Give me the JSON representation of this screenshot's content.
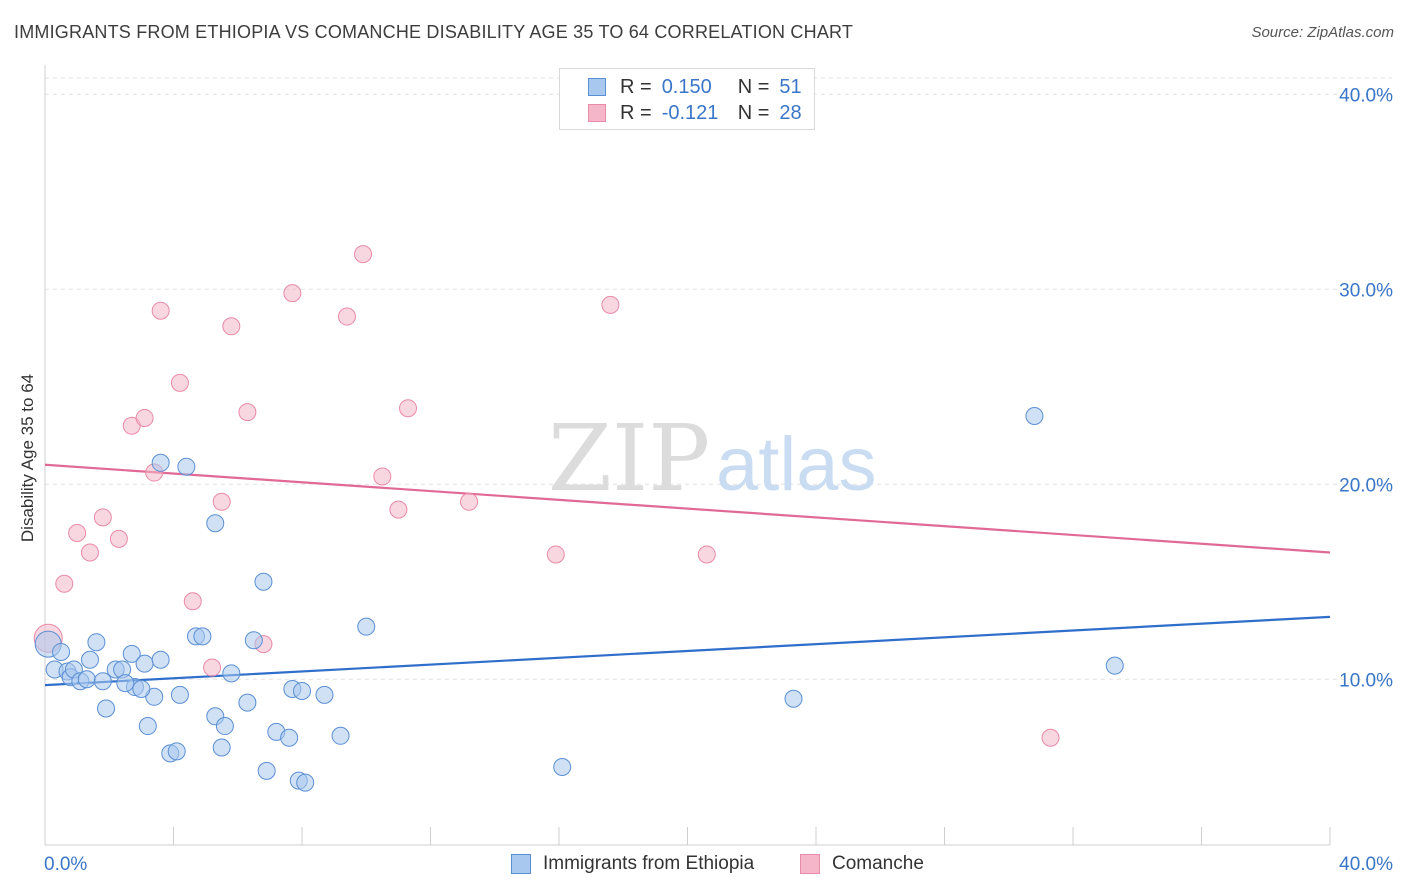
{
  "header": {
    "title": "IMMIGRANTS FROM ETHIOPIA VS COMANCHE DISABILITY AGE 35 TO 64 CORRELATION CHART",
    "source": "Source: ZipAtlas.com"
  },
  "legend": {
    "rows": [
      {
        "r_label": "R =",
        "r_value": "0.150",
        "n_label": "N =",
        "n_value": "51"
      },
      {
        "r_label": "R =",
        "r_value": "-0.121",
        "n_label": "N =",
        "n_value": "28"
      }
    ]
  },
  "watermark": {
    "zip": "ZIP",
    "atlas": "atlas"
  },
  "colors": {
    "blue_fill": "#a9c8ef",
    "blue_stroke": "#5b8fd4",
    "blue_line": "#2f6fcb",
    "pink_fill": "#f4b6c8",
    "pink_stroke": "#e98aa8",
    "pink_line": "#e06a95",
    "axis_text": "#3a76c8",
    "grid": "#e2e2e2"
  },
  "chart_data": {
    "type": "scatter",
    "title": "IMMIGRANTS FROM ETHIOPIA VS COMANCHE DISABILITY AGE 35 TO 64 CORRELATION CHART",
    "xlabel": "",
    "ylabel": "Disability Age 35 to 64",
    "xlim": [
      0,
      40
    ],
    "ylim": [
      1.5,
      41.5
    ],
    "x_ticks_labels": [
      "0.0%",
      "40.0%"
    ],
    "y_ticks": [
      10,
      20,
      30,
      40
    ],
    "y_ticks_labels": [
      "10.0%",
      "20.0%",
      "30.0%",
      "40.0%"
    ],
    "grid": true,
    "legend_placement": "bottom",
    "series": [
      {
        "name": "Immigrants from Ethiopia",
        "color": "#a9c8ef",
        "trend": [
          [
            0,
            9.7
          ],
          [
            40,
            13.2
          ]
        ],
        "points": [
          [
            0.1,
            11.8
          ],
          [
            0.3,
            10.5
          ],
          [
            0.5,
            11.4
          ],
          [
            0.7,
            10.4
          ],
          [
            0.8,
            10.1
          ],
          [
            0.9,
            10.5
          ],
          [
            1.1,
            9.9
          ],
          [
            1.3,
            10.0
          ],
          [
            1.4,
            11.0
          ],
          [
            1.6,
            11.9
          ],
          [
            1.8,
            9.9
          ],
          [
            1.9,
            8.5
          ],
          [
            2.2,
            10.5
          ],
          [
            2.4,
            10.5
          ],
          [
            2.7,
            11.3
          ],
          [
            2.8,
            9.6
          ],
          [
            3.1,
            10.8
          ],
          [
            3.2,
            7.6
          ],
          [
            3.4,
            9.1
          ],
          [
            3.6,
            11.0
          ],
          [
            3.6,
            21.1
          ],
          [
            3.9,
            6.2
          ],
          [
            4.2,
            9.2
          ],
          [
            4.1,
            6.3
          ],
          [
            4.4,
            20.9
          ],
          [
            4.7,
            12.2
          ],
          [
            4.9,
            12.2
          ],
          [
            5.3,
            18.0
          ],
          [
            5.3,
            8.1
          ],
          [
            5.6,
            7.6
          ],
          [
            5.5,
            6.5
          ],
          [
            5.8,
            10.3
          ],
          [
            6.3,
            8.8
          ],
          [
            6.5,
            12.0
          ],
          [
            6.8,
            15.0
          ],
          [
            6.9,
            5.3
          ],
          [
            7.2,
            7.3
          ],
          [
            7.6,
            7.0
          ],
          [
            7.7,
            9.5
          ],
          [
            7.9,
            4.8
          ],
          [
            8.0,
            9.4
          ],
          [
            8.1,
            4.7
          ],
          [
            8.7,
            9.2
          ],
          [
            9.2,
            7.1
          ],
          [
            10.0,
            12.7
          ],
          [
            16.1,
            5.5
          ],
          [
            23.3,
            9.0
          ],
          [
            30.8,
            23.5
          ],
          [
            33.3,
            10.7
          ],
          [
            2.5,
            9.8
          ],
          [
            3.0,
            9.5
          ]
        ]
      },
      {
        "name": "Comanche",
        "color": "#f4b6c8",
        "trend": [
          [
            0,
            21.0
          ],
          [
            40,
            16.5
          ]
        ],
        "points": [
          [
            0.1,
            12.1
          ],
          [
            0.6,
            14.9
          ],
          [
            1.0,
            17.5
          ],
          [
            1.4,
            16.5
          ],
          [
            1.8,
            18.3
          ],
          [
            2.3,
            17.2
          ],
          [
            2.7,
            23.0
          ],
          [
            3.1,
            23.4
          ],
          [
            3.4,
            20.6
          ],
          [
            3.6,
            28.9
          ],
          [
            4.2,
            25.2
          ],
          [
            4.6,
            14.0
          ],
          [
            5.2,
            10.6
          ],
          [
            5.5,
            19.1
          ],
          [
            5.8,
            28.1
          ],
          [
            6.3,
            23.7
          ],
          [
            6.8,
            11.8
          ],
          [
            7.7,
            29.8
          ],
          [
            9.4,
            28.6
          ],
          [
            9.9,
            31.8
          ],
          [
            10.5,
            20.4
          ],
          [
            11.0,
            18.7
          ],
          [
            11.3,
            23.9
          ],
          [
            13.2,
            19.1
          ],
          [
            15.9,
            16.4
          ],
          [
            17.6,
            29.2
          ],
          [
            20.6,
            16.4
          ],
          [
            31.3,
            7.0
          ]
        ]
      }
    ]
  }
}
